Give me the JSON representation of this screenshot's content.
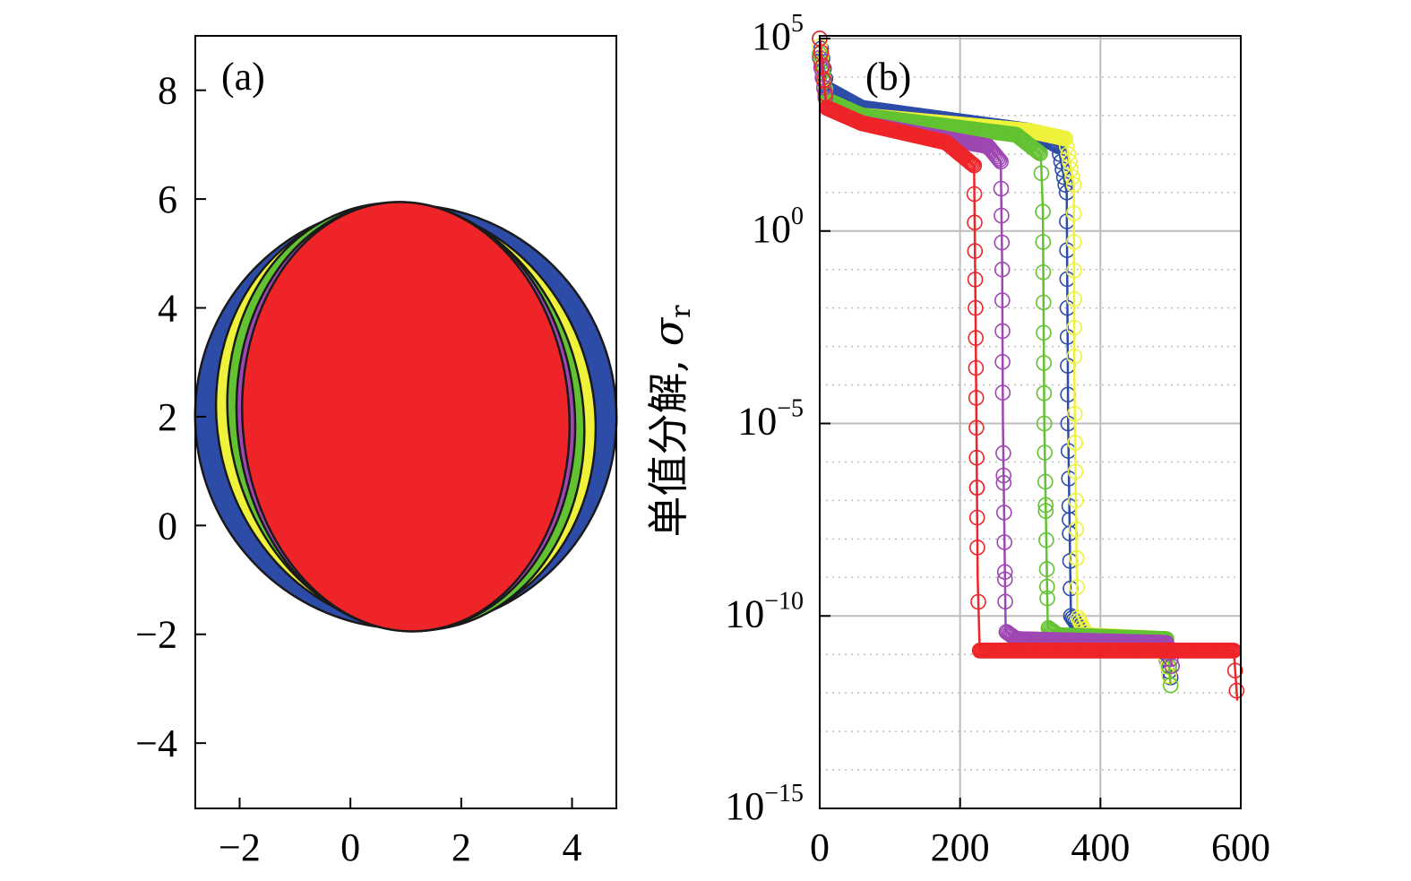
{
  "colors": {
    "blue": "#2D4CA8",
    "yellow": "#EEF23A",
    "green": "#63C231",
    "purple": "#9E46B2",
    "red": "#EE2428",
    "grid": "#BDBDBD"
  },
  "chart_data": [
    {
      "type": "scatter",
      "panel_label": "(a)",
      "title": "",
      "xlabel": "",
      "ylabel": "",
      "xlim": [
        -2.8,
        4.8
      ],
      "ylim": [
        -5.2,
        9.0
      ],
      "xticks": [
        -2,
        0,
        2,
        4
      ],
      "xtick_labels": [
        "−2",
        "0",
        "2",
        "4"
      ],
      "yticks": [
        -4,
        -2,
        0,
        2,
        4,
        6,
        8
      ],
      "ytick_labels": [
        "−4",
        "−2",
        "0",
        "2",
        "4",
        "6",
        "8"
      ],
      "grid": false,
      "ellipses": [
        {
          "color": "blue",
          "cx": 1.0,
          "cy": 2.0,
          "rx": 3.8,
          "ry": 3.9,
          "angle_deg": -18
        },
        {
          "color": "yellow",
          "cx": 1.0,
          "cy": 2.0,
          "rx": 3.4,
          "ry": 3.9,
          "angle_deg": -14
        },
        {
          "color": "green",
          "cx": 1.0,
          "cy": 2.0,
          "rx": 3.2,
          "ry": 3.95,
          "angle_deg": -10
        },
        {
          "color": "purple",
          "cx": 1.0,
          "cy": 2.0,
          "rx": 3.05,
          "ry": 3.95,
          "angle_deg": -5
        },
        {
          "color": "red",
          "cx": 1.0,
          "cy": 2.0,
          "rx": 2.95,
          "ry": 3.95,
          "angle_deg": -4
        }
      ]
    },
    {
      "type": "scatter",
      "panel_label": "(b)",
      "title": "",
      "xlabel": "",
      "ylabel": "单值分解, σr",
      "ylabel_text": "单值分解, ",
      "ylabel_symbol": "σ",
      "ylabel_subscript": "r",
      "xlim": [
        0,
        600
      ],
      "ylim_log10": [
        -15,
        5.5
      ],
      "y_scale": "log",
      "xticks": [
        0,
        200,
        400,
        600
      ],
      "xtick_labels": [
        "0",
        "200",
        "400",
        "600"
      ],
      "yticks_log10": [
        5,
        0,
        -5,
        -10,
        -15
      ],
      "ytick_bases": [
        "10",
        "10",
        "10",
        "10",
        "10"
      ],
      "ytick_exponents": [
        "5",
        "0",
        "−5",
        "−10",
        "−15"
      ],
      "grid": true,
      "series_log10_breakpoints": [
        {
          "color": "blue",
          "points": [
            [
              0,
              5.0
            ],
            [
              10,
              3.7
            ],
            [
              60,
              3.2
            ],
            [
              300,
              2.6
            ],
            [
              340,
              2.2
            ],
            [
              352,
              1.0
            ],
            [
              354,
              -5.0
            ],
            [
              358,
              -10.0
            ],
            [
              380,
              -10.6
            ],
            [
              490,
              -10.8
            ],
            [
              500,
              -11.6
            ]
          ]
        },
        {
          "color": "yellow",
          "points": [
            [
              0,
              4.8
            ],
            [
              10,
              3.4
            ],
            [
              60,
              3.0
            ],
            [
              300,
              2.6
            ],
            [
              350,
              2.4
            ],
            [
              362,
              1.2
            ],
            [
              363,
              -4.0
            ],
            [
              367,
              -10.0
            ],
            [
              380,
              -10.5
            ],
            [
              490,
              -10.6
            ],
            [
              500,
              -11.8
            ]
          ]
        },
        {
          "color": "green",
          "points": [
            [
              0,
              4.6
            ],
            [
              10,
              3.4
            ],
            [
              60,
              3.0
            ],
            [
              280,
              2.5
            ],
            [
              315,
              2.0
            ],
            [
              318,
              0.5
            ],
            [
              320,
              -5.0
            ],
            [
              325,
              -10.3
            ],
            [
              340,
              -10.5
            ],
            [
              495,
              -10.6
            ],
            [
              500,
              -11.8
            ]
          ]
        },
        {
          "color": "purple",
          "points": [
            [
              0,
              4.5
            ],
            [
              10,
              3.2
            ],
            [
              60,
              2.8
            ],
            [
              240,
              2.2
            ],
            [
              258,
              1.8
            ],
            [
              260,
              -1.0
            ],
            [
              261,
              -5.0
            ],
            [
              265,
              -10.4
            ],
            [
              280,
              -10.6
            ],
            [
              495,
              -10.7
            ],
            [
              502,
              -11.3
            ]
          ]
        },
        {
          "color": "red",
          "points": [
            [
              0,
              5.0
            ],
            [
              10,
              3.2
            ],
            [
              60,
              2.8
            ],
            [
              180,
              2.3
            ],
            [
              220,
              1.7
            ],
            [
              222,
              -2.0
            ],
            [
              225,
              -9.0
            ],
            [
              228,
              -10.9
            ],
            [
              590,
              -10.9
            ],
            [
              595,
              -12.2
            ]
          ]
        }
      ]
    }
  ]
}
